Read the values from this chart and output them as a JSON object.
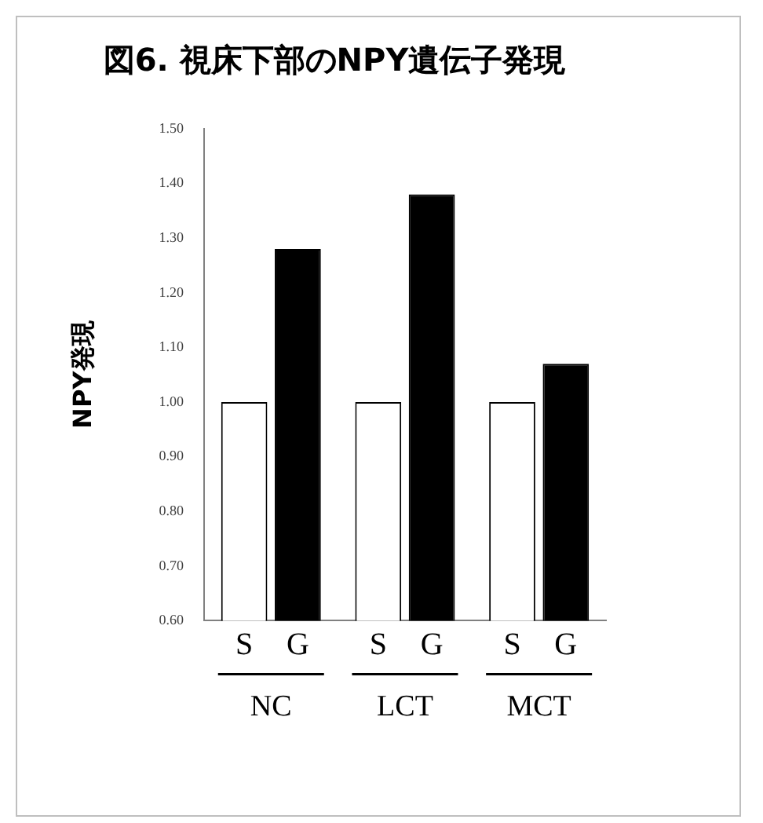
{
  "chart_data": {
    "type": "bar",
    "title": "図6. 視床下部のNPY遺伝子発現",
    "ylabel": "NPY発現",
    "categories": [
      "NC",
      "LCT",
      "MCT"
    ],
    "series": [
      {
        "name": "S",
        "color": "#ffffff",
        "values": [
          1.0,
          1.0,
          1.0
        ]
      },
      {
        "name": "G",
        "color": "#000000",
        "values": [
          1.28,
          1.38,
          1.07
        ]
      }
    ],
    "ylim": [
      0.6,
      1.5
    ],
    "yticks": [
      {
        "value": 0.6,
        "label": "0.60"
      },
      {
        "value": 0.7,
        "label": "0.70"
      },
      {
        "value": 0.8,
        "label": "0.80"
      },
      {
        "value": 0.9,
        "label": "0.90"
      },
      {
        "value": 1.0,
        "label": "1.00"
      },
      {
        "value": 1.1,
        "label": "1.10"
      },
      {
        "value": 1.2,
        "label": "1.20"
      },
      {
        "value": 1.3,
        "label": "1.30"
      },
      {
        "value": 1.4,
        "label": "1.40"
      },
      {
        "value": 1.5,
        "label": "1.50"
      }
    ],
    "grid": false
  }
}
